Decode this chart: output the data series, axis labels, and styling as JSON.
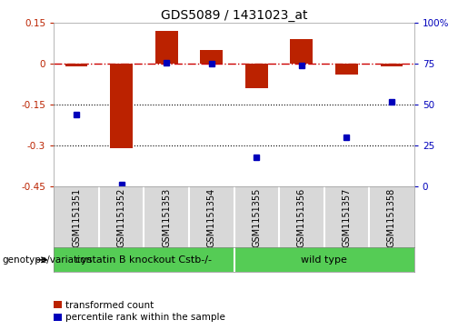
{
  "title": "GDS5089 / 1431023_at",
  "samples": [
    "GSM1151351",
    "GSM1151352",
    "GSM1151353",
    "GSM1151354",
    "GSM1151355",
    "GSM1151356",
    "GSM1151357",
    "GSM1151358"
  ],
  "red_bars": [
    -0.01,
    -0.31,
    0.12,
    0.05,
    -0.09,
    0.09,
    -0.04,
    -0.01
  ],
  "blue_dot_percentile": [
    44,
    1,
    76,
    75,
    18,
    74,
    30,
    52
  ],
  "red_ylim": [
    -0.45,
    0.15
  ],
  "red_yticks": [
    0.15,
    0.0,
    -0.15,
    -0.3,
    -0.45
  ],
  "blue_ylim": [
    0,
    100
  ],
  "blue_yticks": [
    0,
    25,
    50,
    75,
    100
  ],
  "group1_label": "cystatin B knockout Cstb-/-",
  "group1_count": 4,
  "group2_label": "wild type",
  "group_row_label": "genotype/variation",
  "legend_red": "transformed count",
  "legend_blue": "percentile rank within the sample",
  "bar_color": "#bb2200",
  "dot_color": "#0000bb",
  "bg_color": "#d8d8d8",
  "green_color": "#55cc55",
  "hline_color": "#cc0000",
  "dotline_color": "#000000",
  "title_fontsize": 10,
  "axis_fontsize": 7.5,
  "label_fontsize": 7,
  "group_fontsize": 8
}
